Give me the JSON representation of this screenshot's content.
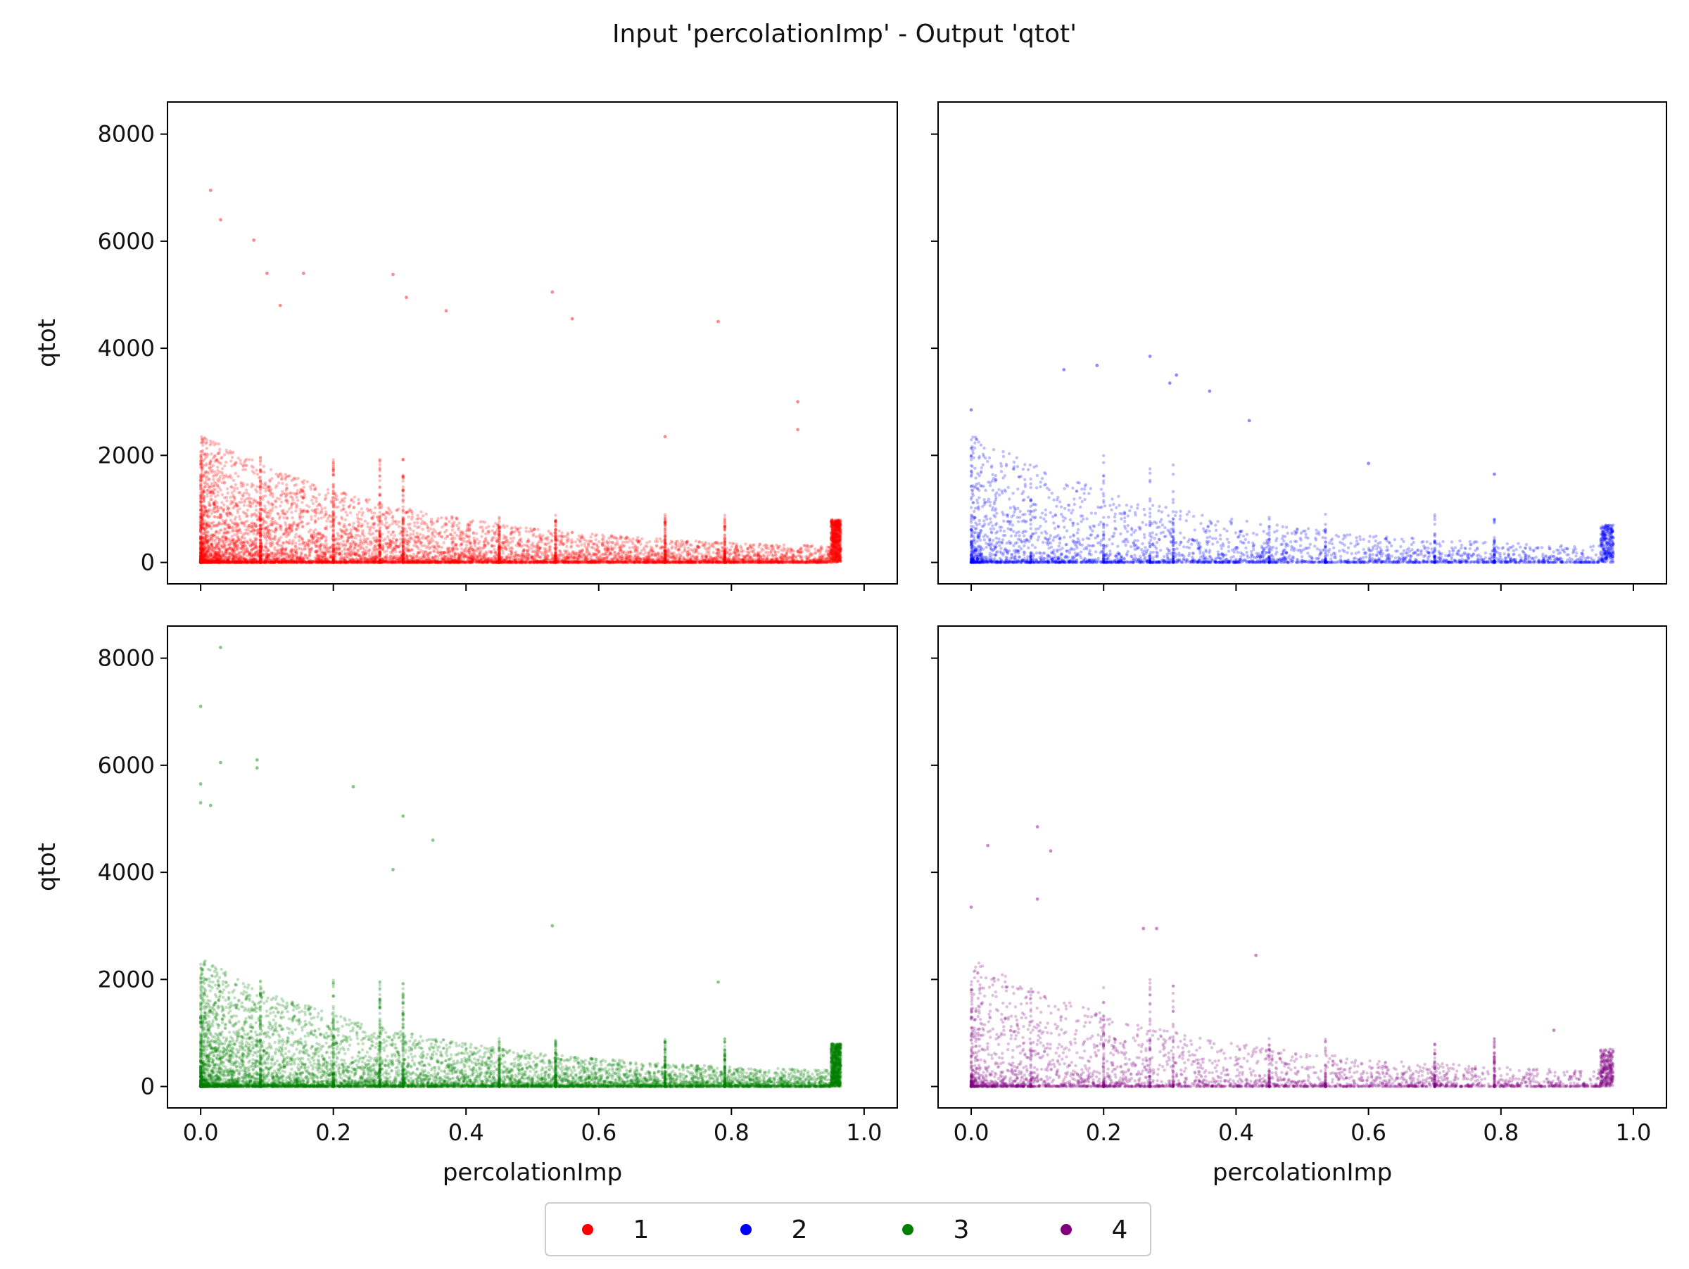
{
  "figure": {
    "title": "Input 'percolationImp' - Output 'qtot'"
  },
  "chart_data": {
    "type": "scatter",
    "title": "Input 'percolationImp' - Output 'qtot'",
    "layout": "2x2 grid, shared x and y axes",
    "xlabel": "percolationImp",
    "ylabel": "qtot",
    "xlim": [
      -0.05,
      1.05
    ],
    "ylim": [
      -400,
      8600
    ],
    "xticks": [
      0.0,
      0.2,
      0.4,
      0.6,
      0.8,
      1.0
    ],
    "xtick_labels": [
      "0.0",
      "0.2",
      "0.4",
      "0.6",
      "0.8",
      "1.0"
    ],
    "yticks": [
      0,
      2000,
      4000,
      6000,
      8000
    ],
    "ytick_labels": [
      "0",
      "2000",
      "4000",
      "6000",
      "8000"
    ],
    "grid": false,
    "legend": {
      "placement": "bottom-center",
      "columns": 4
    },
    "series": [
      {
        "name": "1",
        "color": "#ff0000",
        "max_y": 6950,
        "cluster_x": [
          0.95,
          0.965
        ],
        "cluster_y_max": 800,
        "outliers": [
          [
            0.015,
            6950
          ],
          [
            0.03,
            6400
          ],
          [
            0.08,
            6020
          ],
          [
            0.1,
            5400
          ],
          [
            0.155,
            5400
          ],
          [
            0.29,
            5380
          ],
          [
            0.31,
            4950
          ],
          [
            0.53,
            5050
          ],
          [
            0.37,
            4700
          ],
          [
            0.78,
            4500
          ],
          [
            0.56,
            4550
          ],
          [
            0.12,
            4800
          ],
          [
            0.9,
            3000
          ],
          [
            0.9,
            2480
          ],
          [
            0.7,
            2350
          ]
        ],
        "point_count": 9000
      },
      {
        "name": "2",
        "color": "#0000ff",
        "max_y": 3850,
        "cluster_x": [
          0.95,
          0.97
        ],
        "cluster_y_max": 700,
        "outliers": [
          [
            0.27,
            3850
          ],
          [
            0.19,
            3680
          ],
          [
            0.14,
            3600
          ],
          [
            0.31,
            3500
          ],
          [
            0.36,
            3200
          ],
          [
            0.3,
            3350
          ],
          [
            0.42,
            2650
          ],
          [
            0.6,
            1850
          ],
          [
            0.79,
            1650
          ],
          [
            0.0,
            2850
          ]
        ],
        "point_count": 3500
      },
      {
        "name": "3",
        "color": "#008000",
        "max_y": 8200,
        "cluster_x": [
          0.95,
          0.965
        ],
        "cluster_y_max": 800,
        "outliers": [
          [
            0.03,
            8200
          ],
          [
            0.0,
            7100
          ],
          [
            0.085,
            6100
          ],
          [
            0.03,
            6050
          ],
          [
            0.085,
            5950
          ],
          [
            0.23,
            5600
          ],
          [
            0.0,
            5650
          ],
          [
            0.0,
            5300
          ],
          [
            0.015,
            5250
          ],
          [
            0.305,
            5050
          ],
          [
            0.35,
            4600
          ],
          [
            0.29,
            4050
          ],
          [
            0.53,
            3000
          ],
          [
            0.78,
            1950
          ]
        ],
        "point_count": 9000
      },
      {
        "name": "4",
        "color": "#800080",
        "max_y": 4850,
        "cluster_x": [
          0.95,
          0.97
        ],
        "cluster_y_max": 700,
        "outliers": [
          [
            0.1,
            4850
          ],
          [
            0.025,
            4500
          ],
          [
            0.12,
            4400
          ],
          [
            0.1,
            3500
          ],
          [
            0.0,
            3350
          ],
          [
            0.43,
            2450
          ],
          [
            0.28,
            2950
          ],
          [
            0.26,
            2950
          ],
          [
            0.88,
            1050
          ]
        ],
        "point_count": 3500
      }
    ]
  }
}
